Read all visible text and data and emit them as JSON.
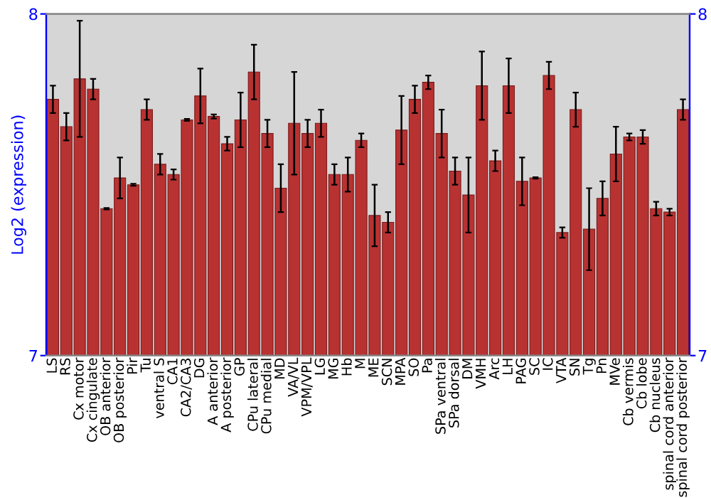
{
  "chart_data": {
    "type": "bar",
    "ylabel": "Log2 (expression)",
    "categories": [
      "LS",
      "RS",
      "Cx motor",
      "Cx cingulate",
      "OB anterior",
      "OB posterior",
      "Pir",
      "Tu",
      "ventral S",
      "CA1",
      "CA2/CA3",
      "DG",
      "A anterior",
      "A posterior",
      "GP",
      "CPu lateral",
      "CPu medial",
      "MD",
      "VA/VL",
      "VPM/VPL",
      "LG",
      "MG",
      "Hb",
      "M",
      "ME",
      "SCN",
      "MPA",
      "SO",
      "Pa",
      "SPa ventral",
      "SPa dorsal",
      "DM",
      "VMH",
      "Arc",
      "LH",
      "PAG",
      "SC",
      "IC",
      "VTA",
      "SN",
      "Tg",
      "Pn",
      "MVe",
      "Cb vermis",
      "Cb lobe",
      "Cb nucleus",
      "spinal cord anterior",
      "spinal cord posterior"
    ],
    "values": [
      7.75,
      7.67,
      7.81,
      7.78,
      7.43,
      7.52,
      7.5,
      7.72,
      7.56,
      7.53,
      7.69,
      7.76,
      7.7,
      7.62,
      7.69,
      7.83,
      7.65,
      7.49,
      7.68,
      7.65,
      7.68,
      7.53,
      7.53,
      7.63,
      7.41,
      7.39,
      7.66,
      7.75,
      7.8,
      7.65,
      7.54,
      7.47,
      7.79,
      7.57,
      7.79,
      7.51,
      7.52,
      7.82,
      7.36,
      7.72,
      7.37,
      7.46,
      7.59,
      7.64,
      7.64,
      7.43,
      7.42,
      7.72
    ],
    "errors": [
      0.04,
      0.04,
      0.17,
      0.03,
      0.002,
      0.06,
      0.003,
      0.03,
      0.03,
      0.015,
      0.003,
      0.08,
      0.006,
      0.02,
      0.08,
      0.08,
      0.04,
      0.07,
      0.15,
      0.04,
      0.04,
      0.03,
      0.05,
      0.02,
      0.09,
      0.03,
      0.1,
      0.04,
      0.02,
      0.07,
      0.04,
      0.11,
      0.1,
      0.03,
      0.08,
      0.07,
      0.002,
      0.04,
      0.015,
      0.05,
      0.12,
      0.05,
      0.08,
      0.01,
      0.02,
      0.02,
      0.01,
      0.03
    ],
    "color": "#b83232",
    "ylim": [
      7,
      8
    ],
    "yticks": [
      7,
      8
    ],
    "y2lim": [
      7,
      8
    ],
    "y2ticks": [
      7,
      8
    ],
    "grid": false
  }
}
